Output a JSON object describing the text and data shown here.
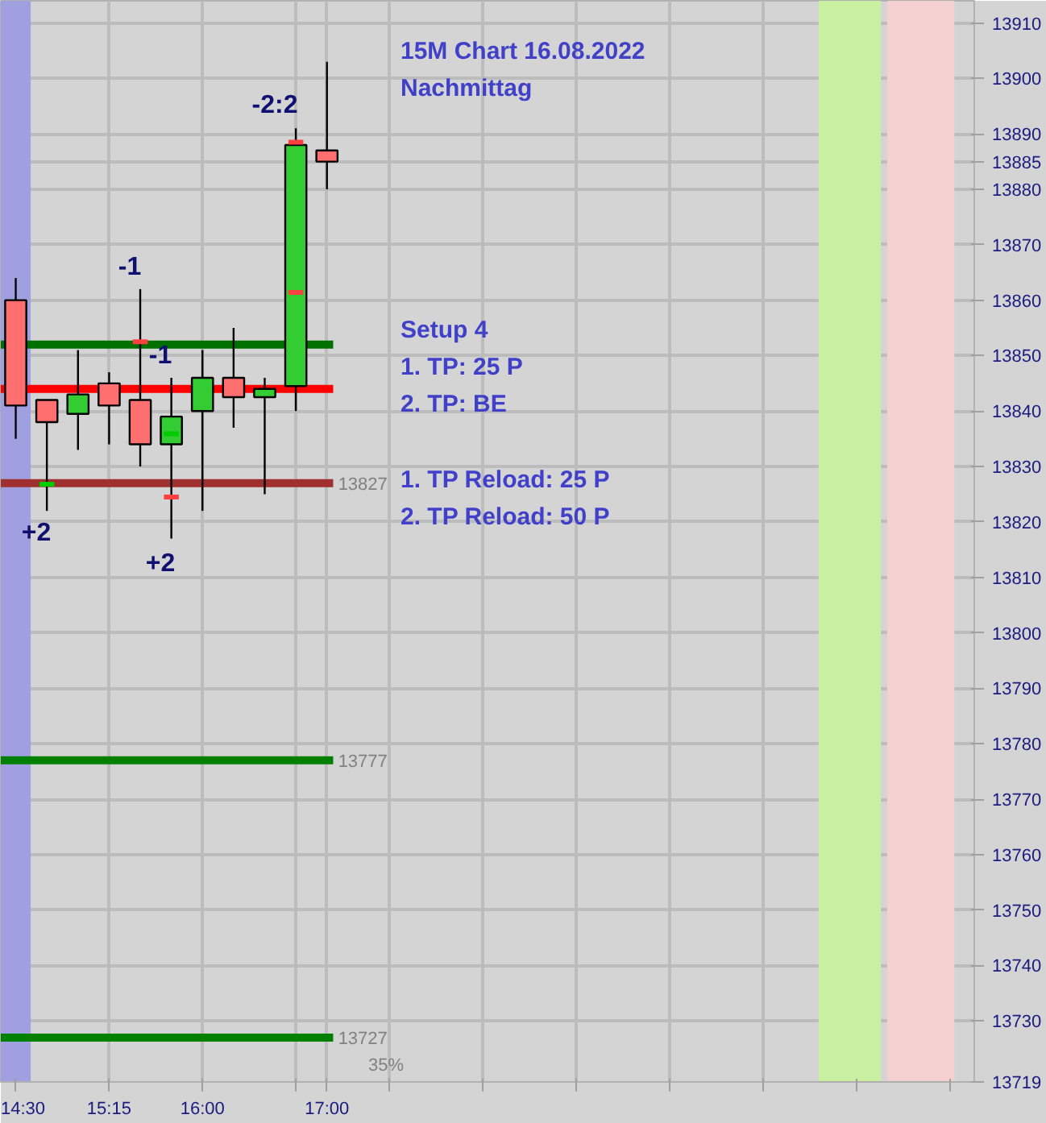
{
  "chart_data": {
    "type": "candlestick",
    "x": [
      14.5,
      14.75,
      15.0,
      15.25,
      15.5,
      15.75,
      16.0,
      16.25,
      16.5,
      16.75,
      17.0
    ],
    "ohlc": [
      [
        13860,
        13864,
        13835,
        13841
      ],
      [
        13842,
        13842,
        13822,
        13838
      ],
      [
        13839.5,
        13851,
        13833,
        13843
      ],
      [
        13845,
        13847,
        13834,
        13841
      ],
      [
        13842,
        13862,
        13830,
        13834
      ],
      [
        13834,
        13846,
        13817,
        13839
      ],
      [
        13840,
        13851,
        13822,
        13846
      ],
      [
        13846,
        13855,
        13837,
        13842.5
      ],
      [
        13842.5,
        13846,
        13825,
        13844
      ],
      [
        13844.5,
        13891,
        13840,
        13888
      ],
      [
        13887,
        13903,
        13880,
        13885
      ]
    ],
    "colors": [
      "#ff6f6f",
      "#ff6f6f",
      "#33cc33",
      "#ff6f6f",
      "#ff6f6f",
      "#33cc33",
      "#33cc33",
      "#ff6f6f",
      "#33cc33",
      "#33cc33",
      "#ff6f6f"
    ],
    "series": [
      {
        "type": "line",
        "color": "#ff4040",
        "x": [
          15.44,
          15.56
        ],
        "values": [
          13852.5,
          13852.5
        ]
      },
      {
        "type": "line",
        "color": "#ff4040",
        "x": [
          15.69,
          15.81
        ],
        "values": [
          13824.5,
          13824.5
        ]
      },
      {
        "type": "line",
        "color": "#ff4040",
        "x": [
          16.69,
          16.81
        ],
        "values": [
          13888.5,
          13888.5
        ]
      },
      {
        "type": "line",
        "color": "#ff4040",
        "x": [
          16.69,
          16.81
        ],
        "values": [
          13861.4,
          13861.4
        ]
      },
      {
        "type": "line",
        "color": "#00cc00",
        "x": [
          14.69,
          14.81
        ],
        "values": [
          13826.8,
          13826.8
        ]
      },
      {
        "type": "line",
        "color": "#00cc00",
        "x": [
          15.69,
          15.81
        ],
        "values": [
          13835.9,
          13835.9
        ]
      }
    ],
    "xlim": [
      14.38,
      22.2
    ],
    "ylim": [
      13719,
      13914
    ],
    "xticks": [
      {
        "value": 14.5,
        "label": "14:30"
      },
      {
        "value": 15.25,
        "label": "15:15"
      },
      {
        "value": 16.0,
        "label": "16:00"
      },
      {
        "value": 16.75,
        "label": null
      },
      {
        "value": 17.0,
        "label": "17:00"
      },
      {
        "value": 17.5,
        "label": null
      },
      {
        "value": 18.25,
        "label": null
      },
      {
        "value": 19.0,
        "label": null
      },
      {
        "value": 19.75,
        "label": null
      },
      {
        "value": 20.5,
        "label": null
      },
      {
        "value": 21.25,
        "label": null
      },
      {
        "value": 22.0,
        "label": null
      }
    ],
    "yticks": [
      13719,
      13730,
      13740,
      13750,
      13760,
      13770,
      13780,
      13790,
      13800,
      13810,
      13820,
      13830,
      13840,
      13850,
      13860,
      13870,
      13880,
      13885,
      13890,
      13900,
      13910
    ],
    "grid": true,
    "ref_lines": [
      {
        "axis": "y",
        "value": 13852,
        "label": null,
        "color": "#007000"
      },
      {
        "axis": "y",
        "value": 13844,
        "label": null,
        "color": "#ff0000"
      },
      {
        "axis": "y",
        "value": 13827,
        "label": "13827",
        "color": "#a03030"
      },
      {
        "axis": "y",
        "value": 13777,
        "label": "13777",
        "color": "#008000"
      },
      {
        "axis": "y",
        "value": 13727,
        "label": "13727",
        "color": "#008000"
      }
    ],
    "bands": [
      {
        "axis": "x",
        "from": 14.38,
        "to": 14.62,
        "label": null,
        "color": "#a0a0e0"
      },
      {
        "axis": "x",
        "from": 20.95,
        "to": 21.45,
        "label": null,
        "color": "#c8f0a0"
      },
      {
        "axis": "x",
        "from": 21.5,
        "to": 22.04,
        "label": null,
        "color": "#f5d0d0"
      }
    ],
    "annotations": [
      "-1",
      "+2",
      "-1",
      "+2",
      "-2:2",
      "15M Chart     16.08.2022",
      "Nachmittag",
      "Setup 4",
      "1. TP: 25 P",
      "2. TP: BE",
      "1. TP Reload: 25 P",
      "2. TP Reload: 50 P",
      "35%"
    ]
  }
}
